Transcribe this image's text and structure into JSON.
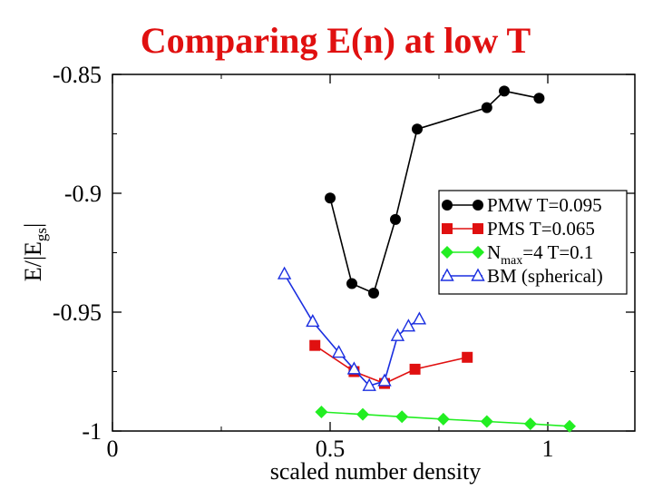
{
  "chart_data": {
    "type": "line",
    "title": "Comparing E(n) at low T",
    "xlabel": "scaled number density",
    "ylabel": {
      "main": "E/|E",
      "sub": "gs",
      "tail": "|"
    },
    "xlim": [
      0,
      1.2
    ],
    "ylim": [
      -1.0,
      -0.85
    ],
    "xticks": [
      0,
      0.5,
      1
    ],
    "xtick_labels": [
      "0",
      "0.5",
      "1"
    ],
    "yticks": [
      -1.0,
      -0.95,
      -0.9,
      -0.85
    ],
    "ytick_labels": [
      "-1",
      "-0.95",
      "-0.9",
      "-0.85"
    ],
    "grid": false,
    "legend_position": "right",
    "series": [
      {
        "name": "PMW T=0.095",
        "legend": {
          "main": "PMW T=0.095"
        },
        "color": "#000000",
        "marker": "circle",
        "x": [
          0.5,
          0.55,
          0.6,
          0.65,
          0.7,
          0.86,
          0.9,
          0.98
        ],
        "y": [
          -0.902,
          -0.938,
          -0.942,
          -0.911,
          -0.873,
          -0.864,
          -0.857,
          -0.86
        ]
      },
      {
        "name": "PMS T=0.065",
        "legend": {
          "main": "PMS  T=0.065"
        },
        "color": "#e01010",
        "marker": "square",
        "x": [
          0.465,
          0.555,
          0.625,
          0.695,
          0.815
        ],
        "y": [
          -0.964,
          -0.975,
          -0.98,
          -0.974,
          -0.969
        ]
      },
      {
        "name": "Nmax=4 T=0.1",
        "legend": {
          "main": "N",
          "sub": "max",
          "tail": "=4  T=0.1"
        },
        "color": "#22ee22",
        "marker": "diamond",
        "x": [
          0.48,
          0.575,
          0.665,
          0.76,
          0.86,
          0.96,
          1.05
        ],
        "y": [
          -0.992,
          -0.993,
          -0.994,
          -0.995,
          -0.996,
          -0.997,
          -0.998
        ]
      },
      {
        "name": "BM (spherical)",
        "legend": {
          "main": "BM (spherical)"
        },
        "color": "#1a2ee0",
        "marker": "triangle-open",
        "x": [
          0.395,
          0.46,
          0.52,
          0.555,
          0.59,
          0.625,
          0.655,
          0.68,
          0.705
        ],
        "y": [
          -0.934,
          -0.954,
          -0.967,
          -0.974,
          -0.981,
          -0.979,
          -0.96,
          -0.956,
          -0.953
        ]
      }
    ]
  }
}
